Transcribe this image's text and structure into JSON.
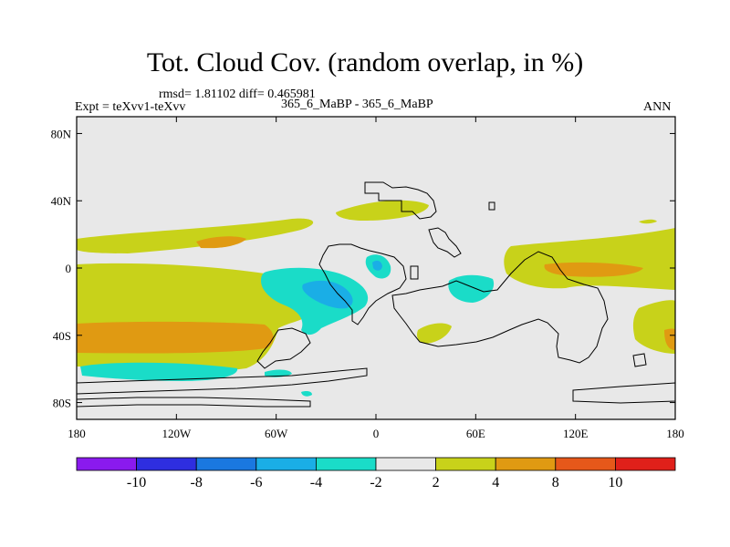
{
  "title": "Tot. Cloud Cov. (random overlap, in %)",
  "stats": "rmsd= 1.81102 diff= 0.465981",
  "expt": "Expt = teXvv1-teXvv",
  "case": "365_6_MaBP - 365_6_MaBP",
  "season": "ANN",
  "x_ticks": [
    "180",
    "120W",
    "60W",
    "0",
    "60E",
    "120E",
    "180"
  ],
  "y_ticks": [
    "80N",
    "40N",
    "0",
    "40S",
    "80S"
  ],
  "colorbar": {
    "colors": [
      "#8a1aee",
      "#2e2ee0",
      "#1a78e0",
      "#1aaee6",
      "#1adcc8",
      "#e8e8e8",
      "#c8d21a",
      "#e09a12",
      "#e6581a",
      "#e0201a"
    ],
    "labels": [
      "-10",
      "-8",
      "-6",
      "-4",
      "-2",
      "2",
      "4",
      "8",
      "10"
    ]
  },
  "map_colors": {
    "background": "#e8e8e8",
    "positive_2_4": "#c8d21a",
    "positive_4_8": "#e09a12",
    "negative_2_4": "#1adcc8",
    "negative_4_6": "#1aaee6",
    "coastline": "#000000"
  }
}
